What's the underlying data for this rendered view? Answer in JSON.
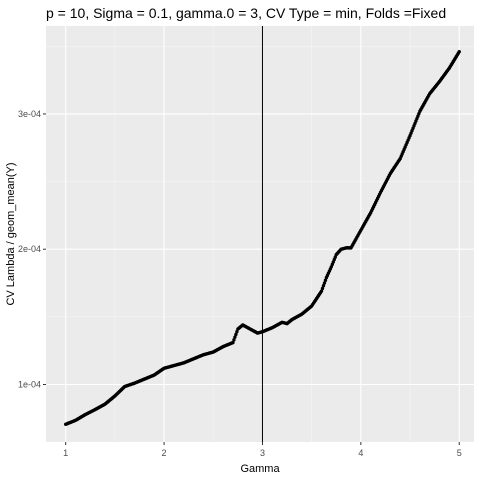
{
  "chart_data": {
    "type": "scatter",
    "title": "p = 10, Sigma = 0.1, gamma.0 = 3, CV Type = min, Folds =Fixed",
    "xlabel": "Gamma",
    "ylabel": "CV Lambda / geom_mean(Y)",
    "xlim": [
      0.8,
      5.15
    ],
    "ylim": [
      5.75e-05,
      0.000365
    ],
    "x_ticks": [
      1,
      2,
      3,
      4,
      5
    ],
    "x_tick_labels": [
      "1",
      "2",
      "3",
      "4",
      "5"
    ],
    "y_ticks": [
      0.0001,
      0.0002,
      0.0003
    ],
    "y_tick_labels": [
      "1e-04",
      "2e-04",
      "3e-04"
    ],
    "vline": 3,
    "grid": true,
    "colors": {
      "panel": "#ebebeb",
      "grid_major": "#ffffff",
      "points": "#000000",
      "vline": "#000000"
    },
    "series": [
      {
        "points": [
          [
            1.0,
            7.06e-05
          ],
          [
            1.1,
            7.35e-05
          ],
          [
            1.2,
            7.78e-05
          ],
          [
            1.3,
            8.15e-05
          ],
          [
            1.4,
            8.55e-05
          ],
          [
            1.5,
            9.15e-05
          ],
          [
            1.6,
            9.85e-05
          ],
          [
            1.7,
            0.000101
          ],
          [
            1.8,
            0.000104
          ],
          [
            1.9,
            0.000107
          ],
          [
            2.0,
            0.000112
          ],
          [
            2.1,
            0.000114
          ],
          [
            2.2,
            0.000116
          ],
          [
            2.3,
            0.000119
          ],
          [
            2.4,
            0.000122
          ],
          [
            2.5,
            0.000124
          ],
          [
            2.6,
            0.000128
          ],
          [
            2.7,
            0.000131
          ],
          [
            2.75,
            0.000141
          ],
          [
            2.8,
            0.000144
          ],
          [
            2.85,
            0.000142
          ],
          [
            2.9,
            0.00014
          ],
          [
            2.95,
            0.000138
          ],
          [
            3.0,
            0.000139
          ],
          [
            3.1,
            0.000142
          ],
          [
            3.2,
            0.000146
          ],
          [
            3.25,
            0.000145
          ],
          [
            3.3,
            0.000148
          ],
          [
            3.4,
            0.000152
          ],
          [
            3.5,
            0.000158
          ],
          [
            3.6,
            0.000169
          ],
          [
            3.65,
            0.000179
          ],
          [
            3.7,
            0.000187
          ],
          [
            3.75,
            0.000196
          ],
          [
            3.8,
            0.0002
          ],
          [
            3.85,
            0.000201
          ],
          [
            3.9,
            0.000201
          ],
          [
            4.0,
            0.000214
          ],
          [
            4.1,
            0.000227
          ],
          [
            4.2,
            0.000242
          ],
          [
            4.3,
            0.000256
          ],
          [
            4.4,
            0.000267
          ],
          [
            4.5,
            0.000284
          ],
          [
            4.6,
            0.000302
          ],
          [
            4.7,
            0.000315
          ],
          [
            4.8,
            0.000324
          ],
          [
            4.9,
            0.000334
          ],
          [
            5.0,
            0.000346
          ]
        ]
      }
    ]
  }
}
